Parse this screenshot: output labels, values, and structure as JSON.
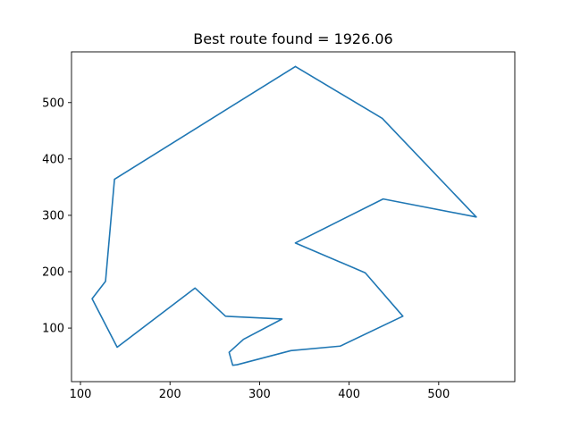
{
  "chart_data": {
    "type": "line",
    "title": "Best route found = 1926.06",
    "xlabel": "",
    "ylabel": "",
    "xlim": [
      90,
      585
    ],
    "ylim": [
      5,
      590
    ],
    "xticks": [
      100,
      200,
      300,
      400,
      500
    ],
    "yticks": [
      100,
      200,
      300,
      400,
      500
    ],
    "grid": false,
    "series": [
      {
        "color": "#1f77b4",
        "x": [
          340,
          437,
          542,
          438,
          340,
          418,
          460,
          390,
          335,
          275,
          270,
          266,
          282,
          325,
          262,
          228,
          141,
          113,
          128,
          138,
          340
        ],
        "y": [
          564,
          472,
          297,
          329,
          251,
          198,
          121,
          68,
          60,
          35,
          34,
          57,
          80,
          116,
          121,
          171,
          66,
          152,
          183,
          364,
          564
        ]
      }
    ]
  }
}
